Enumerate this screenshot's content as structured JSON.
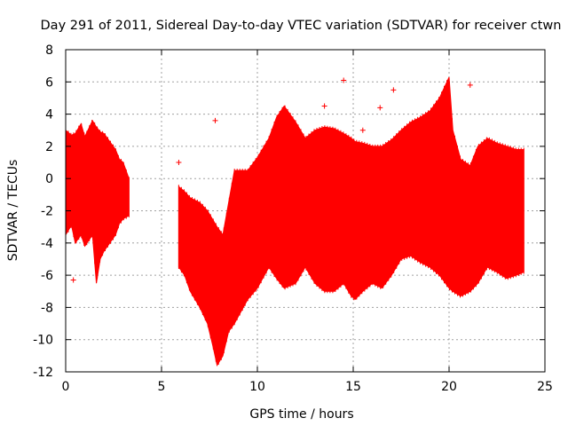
{
  "chart_data": {
    "type": "line",
    "title": "Day 291 of 2011, Sidereal Day-to-day VTEC variation (SDTVAR) for receiver ctwn",
    "xlabel": "GPS time / hours",
    "ylabel": "SDTVAR / TECUs",
    "xlim": [
      0,
      25
    ],
    "ylim": [
      -12,
      8
    ],
    "x_ticks": [
      0,
      5,
      10,
      15,
      20,
      25
    ],
    "y_ticks": [
      -12,
      -10,
      -8,
      -6,
      -4,
      -2,
      0,
      2,
      4,
      6,
      8
    ],
    "grid": true,
    "legend": "none",
    "series_color": "#ff0000",
    "series": [
      {
        "name": "SDTVAR",
        "envelope": {
          "x": [
            0.0,
            0.3,
            0.5,
            0.8,
            1.0,
            1.4,
            1.6,
            1.8,
            2.0,
            2.3,
            2.6,
            2.8,
            3.0,
            3.3,
            5.9,
            6.2,
            6.5,
            7.0,
            7.4,
            7.7,
            7.9,
            8.2,
            8.5,
            8.8,
            9.5,
            10.0,
            10.6,
            11.0,
            11.4,
            12.0,
            12.5,
            13.0,
            13.5,
            14.0,
            14.5,
            14.9,
            15.1,
            15.5,
            16.0,
            16.5,
            17.0,
            17.5,
            18.0,
            18.5,
            19.0,
            19.5,
            20.0,
            20.2,
            20.6,
            21.1,
            21.5,
            22.0,
            22.5,
            23.0,
            23.5,
            23.9
          ],
          "upper": [
            3.0,
            2.7,
            2.8,
            3.4,
            2.6,
            3.6,
            3.2,
            2.9,
            2.8,
            2.3,
            1.8,
            1.2,
            1.0,
            0.0,
            -0.5,
            -0.8,
            -1.2,
            -1.5,
            -2.0,
            -2.6,
            -3.0,
            -3.5,
            -1.5,
            0.5,
            0.5,
            1.3,
            2.5,
            3.8,
            4.5,
            3.5,
            2.5,
            3.0,
            3.2,
            3.1,
            2.8,
            2.5,
            2.3,
            2.2,
            2.0,
            2.0,
            2.4,
            3.0,
            3.5,
            3.8,
            4.2,
            5.0,
            6.3,
            3.0,
            1.2,
            0.8,
            2.0,
            2.5,
            2.2,
            2.0,
            1.8,
            1.8
          ],
          "lower": [
            -3.5,
            -2.9,
            -4.0,
            -3.5,
            -4.2,
            -3.5,
            -6.5,
            -5.0,
            -4.5,
            -4.0,
            -3.5,
            -2.8,
            -2.5,
            -2.3,
            -5.5,
            -6.0,
            -7.0,
            -8.0,
            -9.0,
            -10.5,
            -11.6,
            -11.0,
            -9.5,
            -9.0,
            -7.5,
            -6.8,
            -5.5,
            -6.2,
            -6.8,
            -6.5,
            -5.5,
            -6.5,
            -7.0,
            -7.0,
            -6.5,
            -7.3,
            -7.5,
            -7.0,
            -6.5,
            -6.8,
            -6.0,
            -5.0,
            -4.8,
            -5.2,
            -5.5,
            -6.0,
            -6.8,
            -7.0,
            -7.3,
            -7.0,
            -6.5,
            -5.5,
            -5.8,
            -6.2,
            -6.0,
            -5.8
          ]
        },
        "gaps": [
          [
            3.3,
            5.9
          ]
        ],
        "outliers": [
          {
            "x": 14.5,
            "y": 6.1
          },
          {
            "x": 13.5,
            "y": 4.5
          },
          {
            "x": 0.4,
            "y": -6.3
          },
          {
            "x": 21.1,
            "y": 5.8
          },
          {
            "x": 16.4,
            "y": 4.4
          },
          {
            "x": 17.1,
            "y": 5.5
          },
          {
            "x": 7.8,
            "y": 3.6
          },
          {
            "x": 15.5,
            "y": 3.0
          },
          {
            "x": 5.9,
            "y": 1.0
          }
        ]
      }
    ]
  }
}
